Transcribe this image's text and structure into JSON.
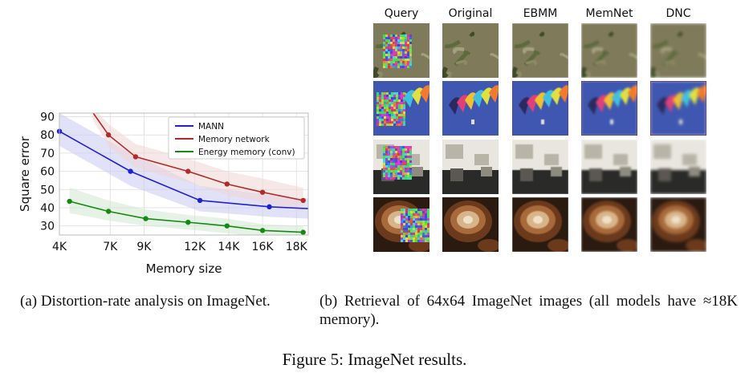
{
  "chart_data": {
    "type": "line",
    "xlabel": "Memory size",
    "ylabel": "Square error",
    "xticks": [
      4000,
      7000,
      9000,
      12000,
      14000,
      16000,
      18000
    ],
    "xtick_labels": [
      "4K",
      "7K",
      "9K",
      "12K",
      "14K",
      "16K",
      "18K"
    ],
    "yticks": [
      30,
      40,
      50,
      60,
      70,
      80,
      90
    ],
    "xlim": [
      4000,
      18700
    ],
    "ylim": [
      25,
      92
    ],
    "grid": true,
    "legend_position": "top-right",
    "series": [
      {
        "name": "MANN",
        "color": "#1f1fd6",
        "band_color": "#c8c8f0",
        "x": [
          4000,
          8200,
          12300,
          16400,
          18700
        ],
        "y": [
          82,
          60,
          44,
          40.5,
          39.5
        ],
        "markers": [
          true,
          true,
          true,
          true,
          false
        ],
        "band": [
          [
            4000,
            74,
            92
          ],
          [
            8200,
            52,
            70
          ],
          [
            12300,
            38,
            52
          ],
          [
            16400,
            35,
            47
          ],
          [
            18700,
            34,
            45
          ]
        ]
      },
      {
        "name": "Memory network",
        "color": "#b22b2b",
        "band_color": "#f0d5d5",
        "x": [
          6000,
          6900,
          8500,
          11600,
          13900,
          16000,
          18400
        ],
        "y": [
          92,
          80,
          68,
          60,
          53,
          48.5,
          44
        ],
        "markers": [
          false,
          true,
          true,
          true,
          true,
          true,
          true
        ],
        "band": [
          [
            6000,
            88,
            95
          ],
          [
            6900,
            74,
            86
          ],
          [
            8500,
            62,
            75
          ],
          [
            11600,
            54,
            67
          ],
          [
            13900,
            47,
            60
          ],
          [
            16000,
            43,
            56
          ],
          [
            18400,
            38,
            51
          ]
        ]
      },
      {
        "name": "Energy memory (conv)",
        "color": "#148a14",
        "band_color": "#cfe8cf",
        "x": [
          4600,
          6900,
          9100,
          11600,
          13900,
          16000,
          18400
        ],
        "y": [
          43.5,
          38,
          34,
          32,
          30,
          27.5,
          26.5
        ],
        "markers": [
          true,
          true,
          true,
          true,
          true,
          true,
          true
        ],
        "band": [
          [
            4600,
            37,
            51
          ],
          [
            6900,
            33,
            44
          ],
          [
            9100,
            30,
            39
          ],
          [
            11600,
            28,
            36
          ],
          [
            13900,
            26,
            34
          ],
          [
            16000,
            24,
            31
          ],
          [
            18400,
            23,
            30
          ]
        ]
      }
    ]
  },
  "retrieval": {
    "columns": [
      "Query",
      "Original",
      "EBMM",
      "MemNet",
      "DNC"
    ],
    "rows": [
      {
        "name": "plant",
        "palette": [
          "#7f7a5a",
          "#5d6a3c",
          "#a3a07e",
          "#3f4a2a",
          "#8d8b66"
        ],
        "accent": "#9aa06a",
        "subject": "leaves"
      },
      {
        "name": "parachute",
        "palette": [
          "#3f57b0",
          "#4b63bb",
          "#3a52a8",
          "#2f4596",
          "#5670c0"
        ],
        "accent": "#e03a6a",
        "subject": "parachute"
      },
      {
        "name": "room",
        "palette": [
          "#e8e6de",
          "#b8b5a8",
          "#5a5850",
          "#2a2a28",
          "#8e8b80"
        ],
        "accent": "#c9c6b8",
        "subject": "room"
      },
      {
        "name": "coffee",
        "palette": [
          "#2a1a10",
          "#6b3a1c",
          "#a86a3a",
          "#d8b48a",
          "#f0e0c8"
        ],
        "accent": "#7a4420",
        "subject": "coffee"
      }
    ]
  },
  "captions": {
    "panel_a": "(a) Distortion-rate analysis on ImageNet.",
    "panel_b": "(b) Retrieval of 64x64 ImageNet images (all models have ≈18K memory).",
    "figure": "Figure 5: ImageNet results."
  }
}
